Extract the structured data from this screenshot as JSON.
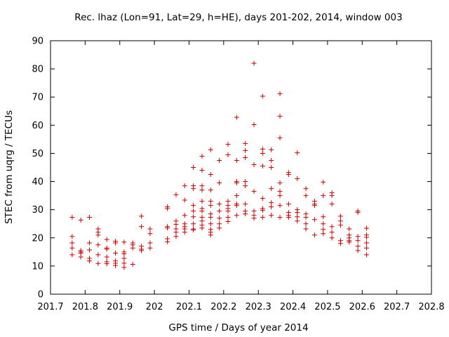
{
  "chart_data": {
    "type": "scatter",
    "title": "Rec. lhaz (Lon=91, Lat=29, h=HE), days 201-202, 2014, window 003",
    "xlabel": "GPS time / Days of year 2014",
    "ylabel": "STEC from uqrg / TECUs",
    "xlim": [
      201.7,
      202.8
    ],
    "ylim": [
      0,
      90
    ],
    "xticks": [
      "201.7",
      "201.8",
      "201.9",
      "202",
      "202.1",
      "202.2",
      "202.3",
      "202.4",
      "202.5",
      "202.6",
      "202.7",
      "202.8"
    ],
    "xtick_values": [
      201.7,
      201.8,
      201.9,
      202.0,
      202.1,
      202.2,
      202.3,
      202.4,
      202.5,
      202.6,
      202.7,
      202.8
    ],
    "yticks": [
      "0",
      "10",
      "20",
      "30",
      "40",
      "50",
      "60",
      "70",
      "80",
      "90"
    ],
    "ytick_values": [
      0,
      10,
      20,
      30,
      40,
      50,
      60,
      70,
      80,
      90
    ],
    "grid": false,
    "marker": "+",
    "color": "#cc0000",
    "points": [
      [
        201.7625,
        27.3
      ],
      [
        201.7625,
        20.5
      ],
      [
        201.7625,
        18.2
      ],
      [
        201.7625,
        16.4
      ],
      [
        201.7625,
        14.0
      ],
      [
        201.7875,
        26.3
      ],
      [
        201.7875,
        15.5
      ],
      [
        201.7875,
        15.0
      ],
      [
        201.7875,
        14.6
      ],
      [
        201.7875,
        13.2
      ],
      [
        201.8125,
        27.3
      ],
      [
        201.8125,
        18.2
      ],
      [
        201.8125,
        15.7
      ],
      [
        201.8125,
        12.7
      ],
      [
        201.8125,
        11.8
      ],
      [
        201.8375,
        23.2
      ],
      [
        201.8375,
        22.0
      ],
      [
        201.8375,
        21.0
      ],
      [
        201.8375,
        17.5
      ],
      [
        201.8375,
        14.0
      ],
      [
        201.8375,
        10.9
      ],
      [
        201.8625,
        19.4
      ],
      [
        201.8625,
        16.4
      ],
      [
        201.8625,
        16.0
      ],
      [
        201.8625,
        13.2
      ],
      [
        201.8625,
        11.5
      ],
      [
        201.8625,
        10.8
      ],
      [
        201.8875,
        18.8
      ],
      [
        201.8875,
        18.2
      ],
      [
        201.8875,
        14.6
      ],
      [
        201.8875,
        11.8
      ],
      [
        201.8875,
        11.0
      ],
      [
        201.8875,
        10.2
      ],
      [
        201.9125,
        18.5
      ],
      [
        201.9125,
        15.0
      ],
      [
        201.9125,
        14.3
      ],
      [
        201.9125,
        12.7
      ],
      [
        201.9125,
        11.0
      ],
      [
        201.9125,
        9.5
      ],
      [
        201.9375,
        18.2
      ],
      [
        201.9375,
        17.5
      ],
      [
        201.9375,
        16.4
      ],
      [
        201.9375,
        10.6
      ],
      [
        201.9625,
        27.7
      ],
      [
        201.9625,
        24.0
      ],
      [
        201.9625,
        17.0
      ],
      [
        201.9625,
        16.0
      ],
      [
        201.9625,
        15.5
      ],
      [
        201.9875,
        23.2
      ],
      [
        201.9875,
        21.5
      ],
      [
        201.9875,
        18.2
      ],
      [
        201.9875,
        16.4
      ],
      [
        202.0375,
        31.0
      ],
      [
        202.0375,
        30.4
      ],
      [
        202.0375,
        24.0
      ],
      [
        202.0375,
        23.5
      ],
      [
        202.0375,
        19.7
      ],
      [
        202.0375,
        18.6
      ],
      [
        202.0625,
        35.3
      ],
      [
        202.0625,
        26.0
      ],
      [
        202.0625,
        24.8
      ],
      [
        202.0625,
        23.2
      ],
      [
        202.0625,
        22.0
      ],
      [
        202.0625,
        20.5
      ],
      [
        202.0875,
        38.5
      ],
      [
        202.0875,
        33.4
      ],
      [
        202.0875,
        28.0
      ],
      [
        202.0875,
        25.0
      ],
      [
        202.0875,
        24.0
      ],
      [
        202.0875,
        23.2
      ],
      [
        202.0875,
        22.0
      ],
      [
        202.1125,
        45.0
      ],
      [
        202.1125,
        38.5
      ],
      [
        202.1125,
        37.5
      ],
      [
        202.1125,
        31.5
      ],
      [
        202.1125,
        29.5
      ],
      [
        202.1125,
        27.5
      ],
      [
        202.1125,
        25.0
      ],
      [
        202.1125,
        23.2
      ],
      [
        202.1125,
        22.8
      ],
      [
        202.1375,
        49.0
      ],
      [
        202.1375,
        44.0
      ],
      [
        202.1375,
        38.5
      ],
      [
        202.1375,
        37.0
      ],
      [
        202.1375,
        33.0
      ],
      [
        202.1375,
        30.4
      ],
      [
        202.1375,
        29.5
      ],
      [
        202.1375,
        27.3
      ],
      [
        202.1375,
        26.0
      ],
      [
        202.1375,
        24.5
      ],
      [
        202.1375,
        23.5
      ],
      [
        202.1625,
        51.3
      ],
      [
        202.1625,
        42.5
      ],
      [
        202.1625,
        37.0
      ],
      [
        202.1625,
        33.0
      ],
      [
        202.1625,
        31.5
      ],
      [
        202.1625,
        28.5
      ],
      [
        202.1625,
        27.3
      ],
      [
        202.1625,
        25.0
      ],
      [
        202.1625,
        23.0
      ],
      [
        202.1625,
        22.0
      ],
      [
        202.1625,
        21.0
      ],
      [
        202.1875,
        47.5
      ],
      [
        202.1875,
        39.5
      ],
      [
        202.1875,
        32.0
      ],
      [
        202.1875,
        29.5
      ],
      [
        202.1875,
        27.0
      ],
      [
        202.1875,
        25.0
      ],
      [
        202.1875,
        23.5
      ],
      [
        202.2125,
        53.2
      ],
      [
        202.2125,
        49.5
      ],
      [
        202.2125,
        33.0
      ],
      [
        202.2125,
        31.5
      ],
      [
        202.2125,
        30.4
      ],
      [
        202.2125,
        29.5
      ],
      [
        202.2125,
        27.3
      ],
      [
        202.2125,
        25.8
      ],
      [
        202.2375,
        62.8
      ],
      [
        202.2375,
        47.5
      ],
      [
        202.2375,
        40.0
      ],
      [
        202.2375,
        39.5
      ],
      [
        202.2375,
        35.0
      ],
      [
        202.2375,
        32.0
      ],
      [
        202.2375,
        31.5
      ],
      [
        202.2375,
        28.0
      ],
      [
        202.2625,
        53.5
      ],
      [
        202.2625,
        51.0
      ],
      [
        202.2625,
        48.5
      ],
      [
        202.2625,
        40.0
      ],
      [
        202.2625,
        38.5
      ],
      [
        202.2625,
        32.0
      ],
      [
        202.2625,
        29.5
      ],
      [
        202.2625,
        28.5
      ],
      [
        202.2875,
        82.0
      ],
      [
        202.2875,
        60.2
      ],
      [
        202.2875,
        46.0
      ],
      [
        202.2875,
        36.5
      ],
      [
        202.2875,
        29.5
      ],
      [
        202.2875,
        28.0
      ],
      [
        202.2875,
        27.0
      ],
      [
        202.3125,
        70.3
      ],
      [
        202.3125,
        51.5
      ],
      [
        202.3125,
        50.0
      ],
      [
        202.3125,
        45.5
      ],
      [
        202.3125,
        34.0
      ],
      [
        202.3125,
        30.4
      ],
      [
        202.3125,
        29.8
      ],
      [
        202.3125,
        27.3
      ],
      [
        202.3375,
        51.3
      ],
      [
        202.3375,
        47.5
      ],
      [
        202.3375,
        45.0
      ],
      [
        202.3375,
        37.5
      ],
      [
        202.3375,
        32.5
      ],
      [
        202.3375,
        31.0
      ],
      [
        202.3375,
        28.0
      ],
      [
        202.3625,
        71.2
      ],
      [
        202.3625,
        63.2
      ],
      [
        202.3625,
        55.5
      ],
      [
        202.3625,
        39.5
      ],
      [
        202.3625,
        36.5
      ],
      [
        202.3625,
        35.0
      ],
      [
        202.3625,
        31.5
      ],
      [
        202.3625,
        27.3
      ],
      [
        202.3875,
        43.2
      ],
      [
        202.3875,
        42.5
      ],
      [
        202.3875,
        32.0
      ],
      [
        202.3875,
        29.0
      ],
      [
        202.3875,
        28.0
      ],
      [
        202.3875,
        27.3
      ],
      [
        202.4125,
        50.2
      ],
      [
        202.4125,
        41.0
      ],
      [
        202.4125,
        30.0
      ],
      [
        202.4125,
        29.0
      ],
      [
        202.4125,
        27.5
      ],
      [
        202.4125,
        26.0
      ],
      [
        202.4375,
        37.5
      ],
      [
        202.4375,
        35.0
      ],
      [
        202.4375,
        28.5
      ],
      [
        202.4375,
        27.3
      ],
      [
        202.4375,
        25.0
      ],
      [
        202.4375,
        23.2
      ],
      [
        202.4625,
        33.0
      ],
      [
        202.4625,
        32.0
      ],
      [
        202.4625,
        31.5
      ],
      [
        202.4625,
        26.5
      ],
      [
        202.4625,
        21.0
      ],
      [
        202.4875,
        39.8
      ],
      [
        202.4875,
        35.0
      ],
      [
        202.4875,
        27.5
      ],
      [
        202.4875,
        25.0
      ],
      [
        202.4875,
        23.0
      ],
      [
        202.4875,
        21.5
      ],
      [
        202.5125,
        36.0
      ],
      [
        202.5125,
        35.0
      ],
      [
        202.5125,
        32.0
      ],
      [
        202.5125,
        24.0
      ],
      [
        202.5125,
        22.0
      ],
      [
        202.5125,
        20.0
      ],
      [
        202.5375,
        27.7
      ],
      [
        202.5375,
        26.0
      ],
      [
        202.5375,
        24.5
      ],
      [
        202.5375,
        19.0
      ],
      [
        202.5375,
        18.0
      ],
      [
        202.5625,
        23.2
      ],
      [
        202.5625,
        21.0
      ],
      [
        202.5625,
        20.0
      ],
      [
        202.5625,
        19.0
      ],
      [
        202.5625,
        18.5
      ],
      [
        202.5875,
        29.5
      ],
      [
        202.5875,
        29.0
      ],
      [
        202.5875,
        20.5
      ],
      [
        202.5875,
        19.0
      ],
      [
        202.5875,
        17.0
      ],
      [
        202.5875,
        15.5
      ],
      [
        202.6125,
        23.4
      ],
      [
        202.6125,
        21.0
      ],
      [
        202.6125,
        20.2
      ],
      [
        202.6125,
        18.2
      ],
      [
        202.6125,
        16.4
      ],
      [
        202.6125,
        14.0
      ]
    ]
  }
}
